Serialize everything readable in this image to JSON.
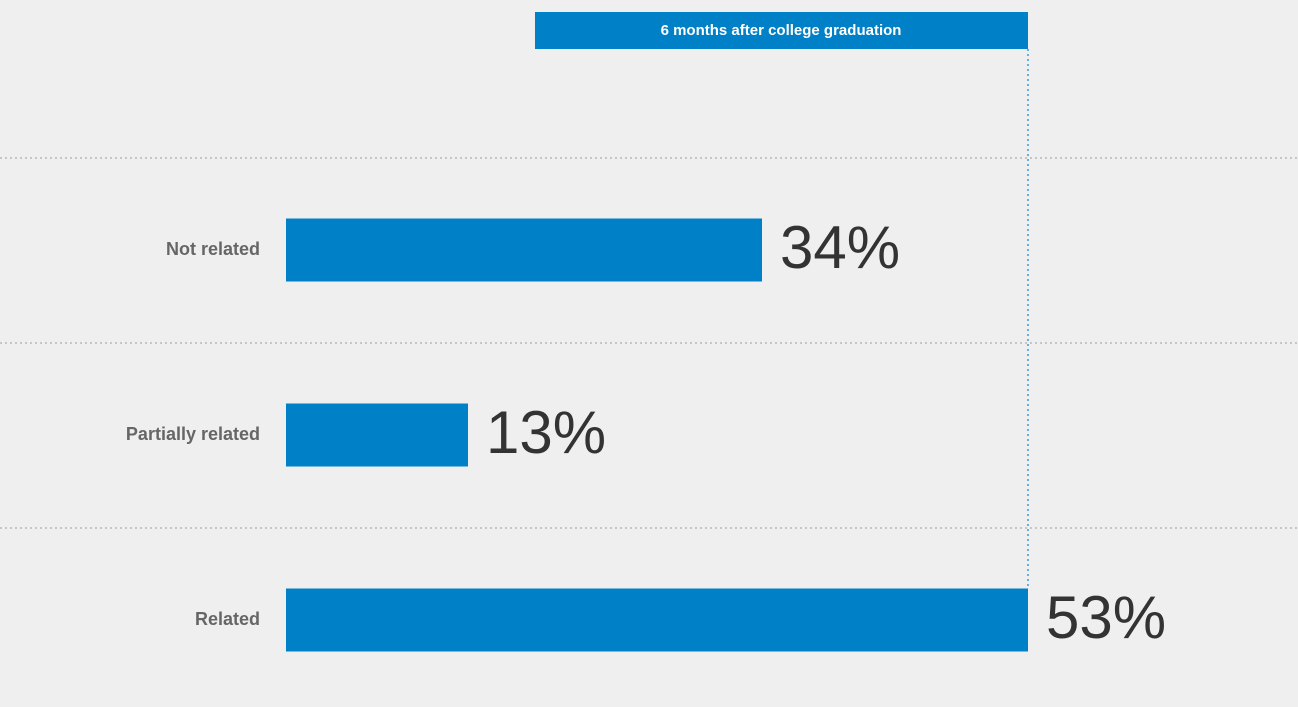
{
  "chart_data": {
    "type": "bar",
    "orientation": "horizontal",
    "title": "6 months after college graduation",
    "categories": [
      "Not related",
      "Partially related",
      "Related"
    ],
    "values": [
      34,
      13,
      53
    ],
    "value_labels": [
      "34%",
      "13%",
      "53%"
    ],
    "color": "#0080c6"
  }
}
